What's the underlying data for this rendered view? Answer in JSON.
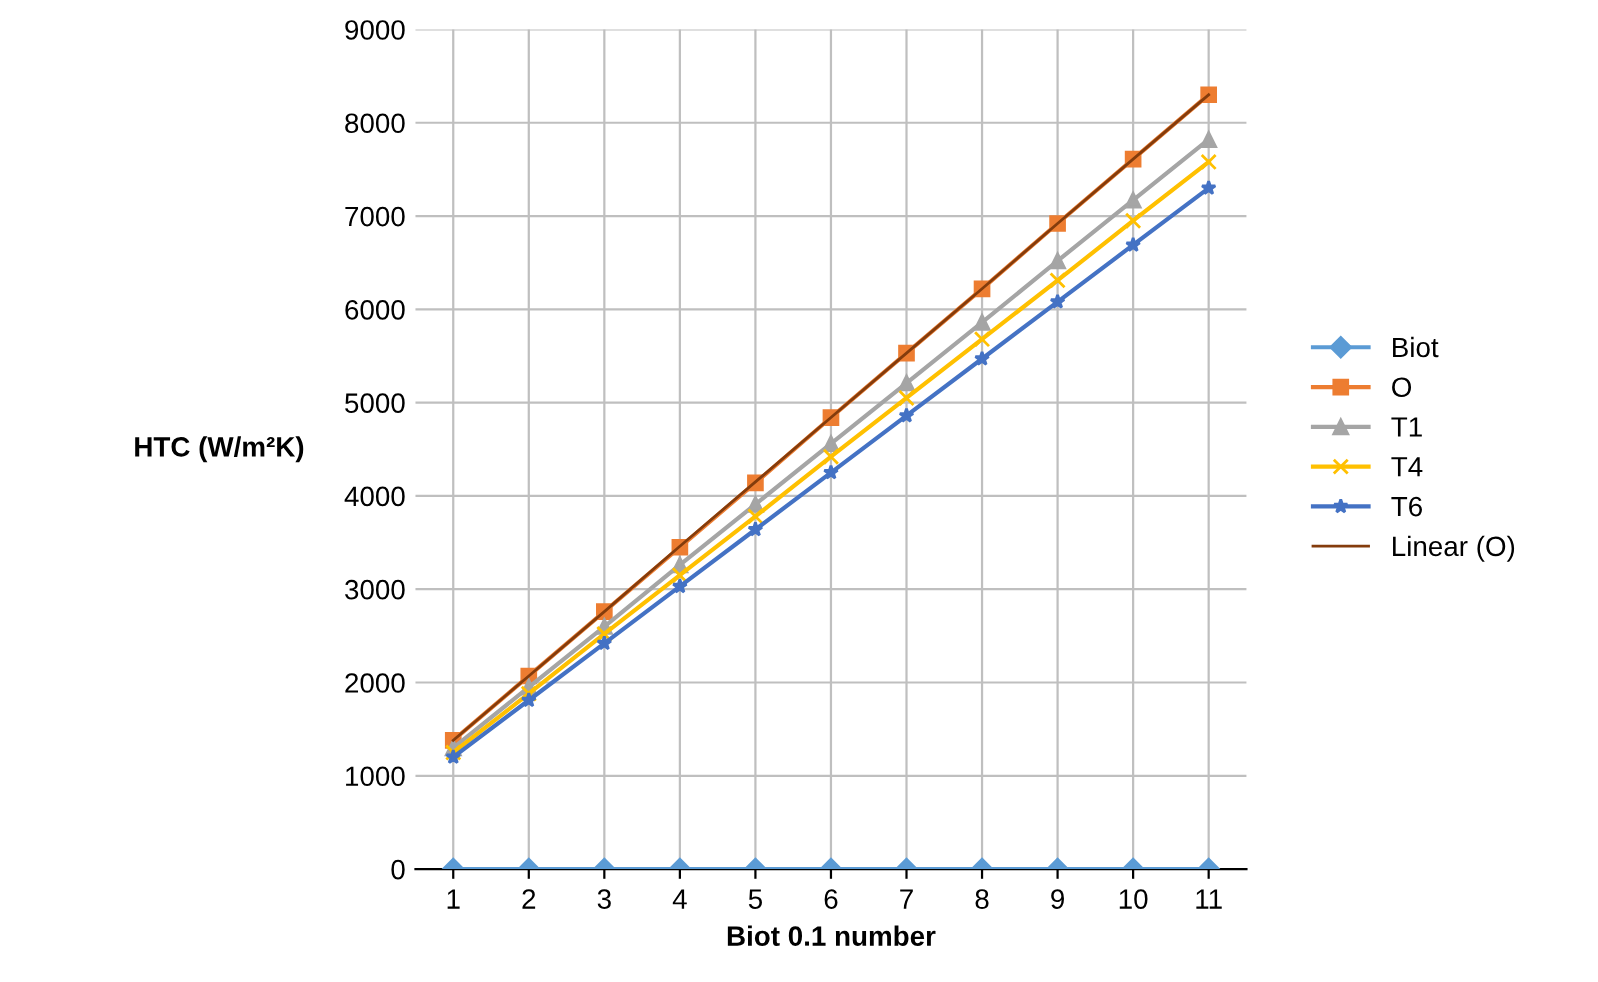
{
  "chart_data": {
    "type": "line",
    "xlabel": "Biot 0.1 number",
    "ylabel": "HTC (W/m²K)",
    "categories": [
      "1",
      "2",
      "3",
      "4",
      "5",
      "6",
      "7",
      "8",
      "9",
      "10",
      "11"
    ],
    "series": [
      {
        "name": "Biot",
        "color": "#5b9bd5",
        "marker": "diamond",
        "values": [
          0,
          0,
          0,
          0,
          0,
          0,
          0,
          0,
          0,
          0,
          0
        ]
      },
      {
        "name": "O",
        "color": "#ed7d31",
        "marker": "square",
        "values": [
          1380,
          2070,
          2760,
          3450,
          4140,
          4840,
          5530,
          6220,
          6920,
          7610,
          8300
        ]
      },
      {
        "name": "T1",
        "color": "#a5a5a5",
        "marker": "triangle",
        "values": [
          1300,
          1950,
          2600,
          3260,
          3910,
          4560,
          5210,
          5860,
          6520,
          7170,
          7820
        ]
      },
      {
        "name": "T4",
        "color": "#ffc000",
        "marker": "cross",
        "values": [
          1250,
          1880,
          2520,
          3150,
          3780,
          4420,
          5050,
          5680,
          6310,
          6950,
          7580
        ]
      },
      {
        "name": "T6",
        "color": "#4472c4",
        "marker": "star",
        "values": [
          1200,
          1810,
          2420,
          3030,
          3640,
          4250,
          4860,
          5470,
          6080,
          6690,
          7300
        ]
      },
      {
        "name": "Linear (O)",
        "color": "#843c0c",
        "marker": "none",
        "values": [
          1380,
          2070,
          2760,
          3460,
          4150,
          4840,
          5530,
          6220,
          6920,
          7610,
          8300
        ]
      }
    ],
    "ylim": [
      0,
      9000
    ],
    "yticks": [
      0,
      1000,
      2000,
      3000,
      4000,
      5000,
      6000,
      7000,
      8000,
      9000
    ],
    "grid": true,
    "legend": "right"
  }
}
